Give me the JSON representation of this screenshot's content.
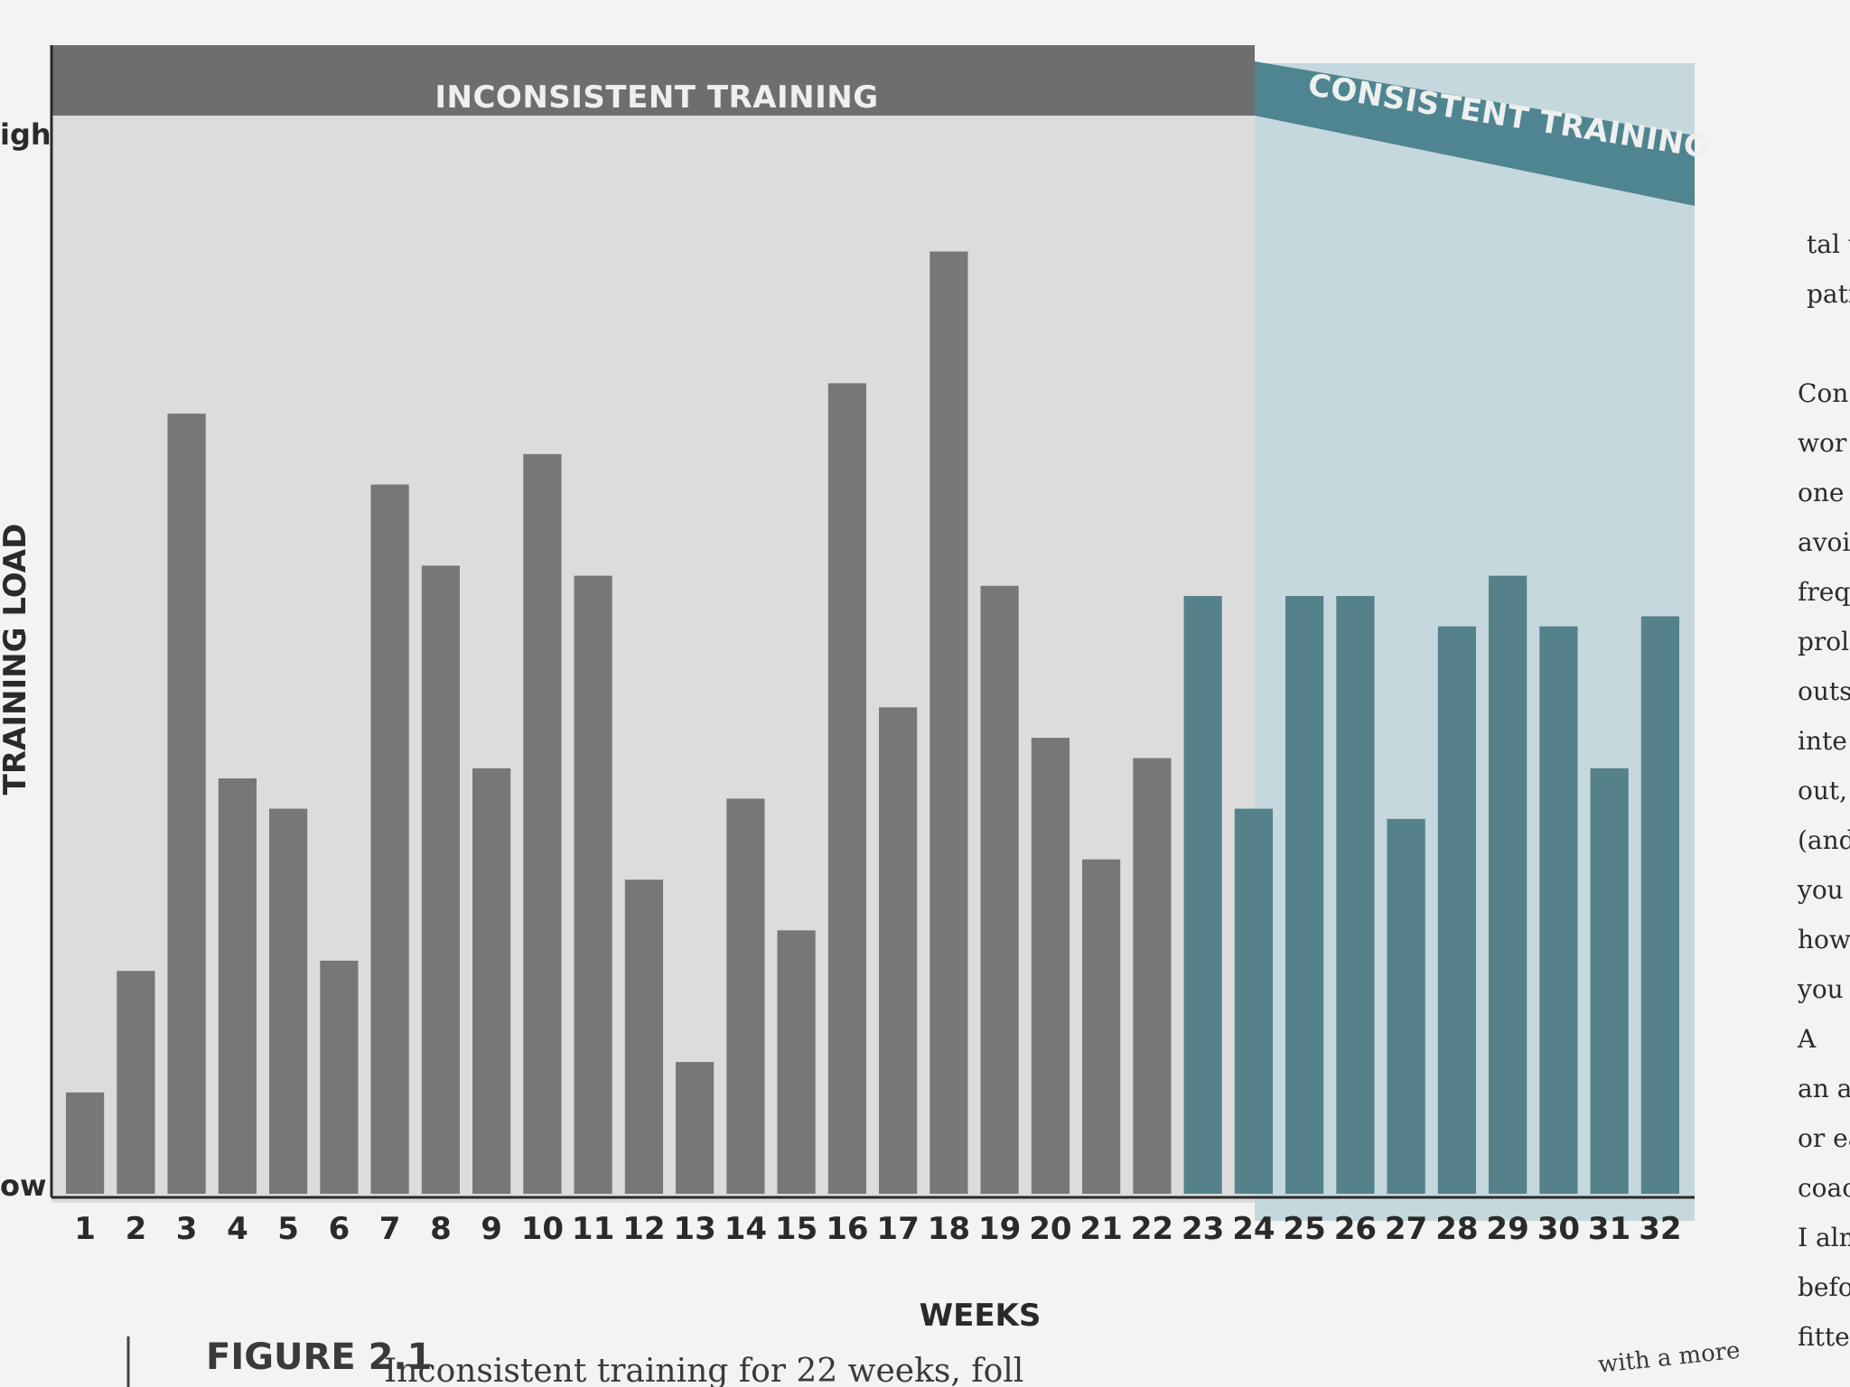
{
  "chart_data": {
    "type": "bar",
    "xlabel": "WEEKS",
    "ylabel": "TRAINING LOAD",
    "y_end_labels": {
      "high": "igh",
      "low": "ow"
    },
    "ylim": [
      0,
      100
    ],
    "bands": [
      {
        "label": "INCONSISTENT TRAINING",
        "weeks": [
          1,
          22
        ],
        "color": "#6e6e6e",
        "fill": "#dcdcdb"
      },
      {
        "label": "CONSISTENT TRAINING",
        "weeks": [
          23,
          32
        ],
        "color": "#4f8591",
        "fill": "#c5d8dd"
      }
    ],
    "categories": [
      "1",
      "2",
      "3",
      "4",
      "5",
      "6",
      "7",
      "8",
      "9",
      "10",
      "11",
      "12",
      "13",
      "14",
      "15",
      "16",
      "17",
      "18",
      "19",
      "20",
      "21",
      "22",
      "23",
      "24",
      "25",
      "26",
      "27",
      "28",
      "29",
      "30",
      "31",
      "32"
    ],
    "values": [
      10,
      22,
      77,
      41,
      38,
      23,
      70,
      62,
      42,
      73,
      61,
      31,
      13,
      39,
      26,
      80,
      48,
      93,
      60,
      45,
      33,
      43,
      59,
      38,
      59,
      59,
      37,
      56,
      61,
      56,
      42,
      57
    ],
    "bar_colors": {
      "inconsistent": "#777777",
      "consistent": "#55818b"
    }
  },
  "caption": {
    "label": "FIGURE 2.1",
    "text": "Inconsistent training for 22 weeks, foll",
    "text_right": "with a more"
  },
  "side_page_lines": [
    "tal t",
    "pati",
    "",
    "Con",
    "wor",
    "one",
    "avoi",
    "freq",
    "prol",
    "outs",
    "inte",
    "out,",
    "(and",
    "you",
    "how",
    "you t",
    "A",
    "an at",
    "or ea",
    "coacl",
    "I alm",
    "befor",
    "fitter"
  ]
}
